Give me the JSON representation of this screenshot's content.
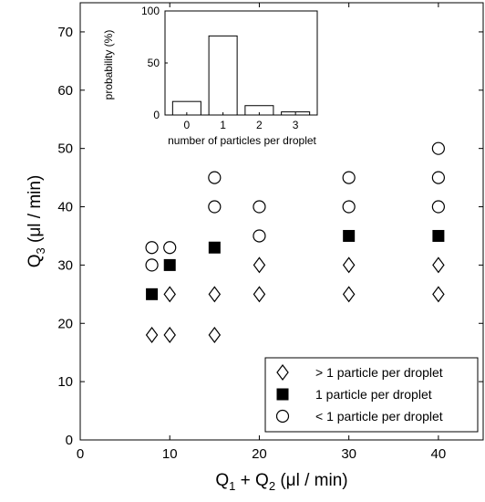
{
  "chart_data": [
    {
      "type": "scatter",
      "xlabel": {
        "main": "Q",
        "sub": "1",
        "mid": " + Q",
        "sub2": "2",
        "end": " (μl / min)"
      },
      "ylabel": {
        "main": "Q",
        "sub": "3",
        "end": " (μl / min)"
      },
      "xlim": [
        0,
        45
      ],
      "ylim": [
        0,
        75
      ],
      "xticks": [
        "0",
        "10",
        "20",
        "30",
        "40"
      ],
      "xtick_values": [
        0,
        10,
        20,
        30,
        40
      ],
      "yticks": [
        "0",
        "10",
        "20",
        "30",
        "40",
        "50",
        "60",
        "70"
      ],
      "ytick_values": [
        0,
        10,
        20,
        30,
        40,
        50,
        60,
        70
      ],
      "grid": false,
      "legend_position": "bottom-right",
      "series": [
        {
          "name": "> 1 particle per droplet",
          "marker": "diamond-open",
          "points": [
            [
              8,
              18
            ],
            [
              10,
              18
            ],
            [
              10,
              25
            ],
            [
              15,
              18
            ],
            [
              15,
              25
            ],
            [
              20,
              25
            ],
            [
              20,
              30
            ],
            [
              30,
              25
            ],
            [
              30,
              30
            ],
            [
              40,
              25
            ],
            [
              40,
              30
            ]
          ]
        },
        {
          "name": "1 particle per droplet",
          "marker": "square-filled",
          "points": [
            [
              8,
              25
            ],
            [
              10,
              30
            ],
            [
              15,
              33
            ],
            [
              30,
              35
            ],
            [
              40,
              35
            ]
          ]
        },
        {
          "name": "< 1 particle per droplet",
          "marker": "circle-open",
          "points": [
            [
              8,
              30
            ],
            [
              8,
              33
            ],
            [
              10,
              33
            ],
            [
              15,
              40
            ],
            [
              15,
              45
            ],
            [
              20,
              35
            ],
            [
              20,
              40
            ],
            [
              30,
              40
            ],
            [
              30,
              45
            ],
            [
              40,
              40
            ],
            [
              40,
              45
            ],
            [
              40,
              50
            ]
          ]
        }
      ]
    },
    {
      "type": "bar",
      "categories": [
        "0",
        "1",
        "2",
        "3"
      ],
      "values": [
        13,
        76,
        9,
        3
      ],
      "xlabel": "number of particles per droplet",
      "ylabel": "probability (%)",
      "ylim": [
        0,
        100
      ],
      "yticks": [
        "0",
        "50",
        "100"
      ],
      "ytick_values": [
        0,
        50,
        100
      ]
    }
  ]
}
